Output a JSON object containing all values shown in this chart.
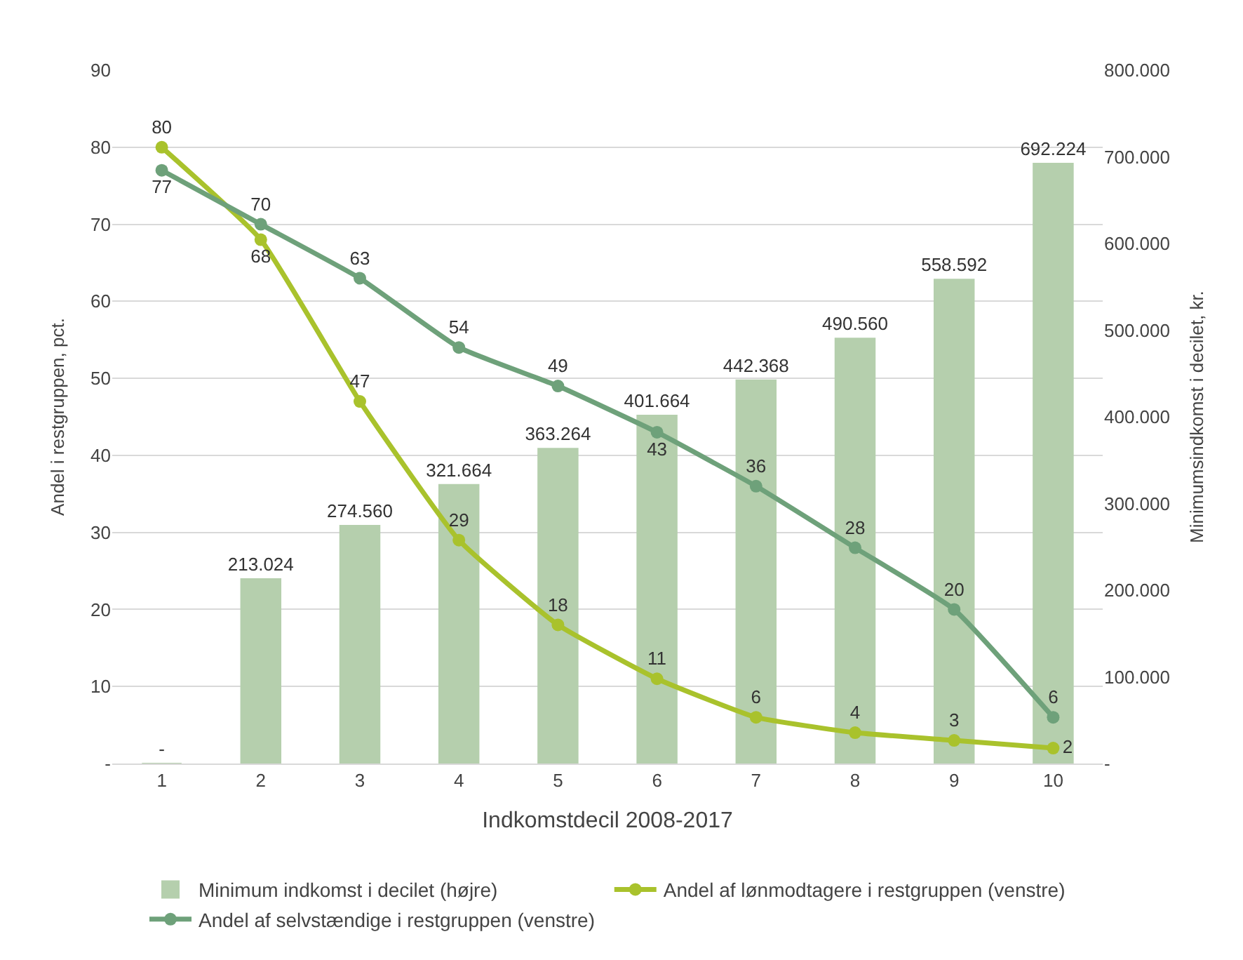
{
  "chart_data": {
    "type": "bar",
    "xlabel": "Indkomstdecil 2008-2017",
    "ylabel": "Andel i restgruppen, pct.",
    "y2label": "Minimumsindkomst i decilet, kr.",
    "categories": [
      "1",
      "2",
      "3",
      "4",
      "5",
      "6",
      "7",
      "8",
      "9",
      "10"
    ],
    "series": [
      {
        "name": "Minimum indkomst i decilet (højre)",
        "axis": "y2",
        "color": "#b5cfad",
        "values": [
          0,
          213024,
          274560,
          321664,
          363264,
          401664,
          442368,
          490560,
          558592,
          692224
        ],
        "value_labels": [
          "-",
          "213.024",
          "274.560",
          "321.664",
          "363.264",
          "401.664",
          "442.368",
          "490.560",
          "558.592",
          "692.224"
        ]
      },
      {
        "name": "Andel af lønmodtagere i restgruppen (venstre)",
        "type": "line",
        "color": "#a9c22c",
        "marker": "circle",
        "values": [
          80,
          68,
          47,
          29,
          18,
          11,
          6,
          4,
          3,
          2
        ]
      },
      {
        "name": "Andel af selvstændige i restgruppen (venstre)",
        "type": "line",
        "color": "#6ea17a",
        "marker": "circle",
        "values": [
          77,
          70,
          63,
          54,
          49,
          43,
          36,
          28,
          20,
          6
        ]
      }
    ],
    "data_labels": true,
    "ylim": [
      0,
      90
    ],
    "yticks": [
      {
        "value": 0,
        "label": "-"
      },
      10,
      20,
      30,
      40,
      50,
      60,
      70,
      80,
      90
    ],
    "y2lim": [
      0,
      800000
    ],
    "y2ticks": [
      {
        "value": 0,
        "label": "-"
      },
      {
        "value": 100000,
        "label": "100.000"
      },
      {
        "value": 200000,
        "label": "200.000"
      },
      {
        "value": 300000,
        "label": "300.000"
      },
      {
        "value": 400000,
        "label": "400.000"
      },
      {
        "value": 500000,
        "label": "500.000"
      },
      {
        "value": 600000,
        "label": "600.000"
      },
      {
        "value": 700000,
        "label": "700.000"
      },
      {
        "value": 800000,
        "label": "800.000"
      }
    ],
    "grid": "y",
    "legend": "bottom"
  }
}
